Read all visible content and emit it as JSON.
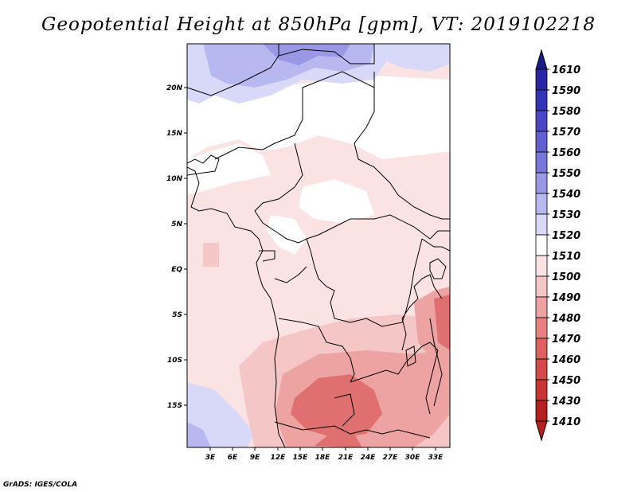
{
  "title": "Geopotential Height at 850hPa [gpm], VT: 2019102218",
  "credit": "GrADS: IGES/COLA",
  "map": {
    "lat_labels": [
      "20N",
      "15N",
      "10N",
      "5N",
      "EQ",
      "5S",
      "10S",
      "15S"
    ],
    "lon_labels": [
      "3E",
      "6E",
      "9E",
      "12E",
      "15E",
      "18E",
      "21E",
      "24E",
      "27E",
      "30E",
      "33E"
    ]
  },
  "colorbar": {
    "levels": [
      "1610",
      "1590",
      "1580",
      "1570",
      "1560",
      "1550",
      "1540",
      "1530",
      "1520",
      "1510",
      "1500",
      "1490",
      "1480",
      "1470",
      "1460",
      "1450",
      "1430",
      "1410"
    ],
    "colors": [
      "#1a1a8c",
      "#2727a8",
      "#3434bb",
      "#4848c8",
      "#6060d2",
      "#7878dc",
      "#9898e6",
      "#b8b8f0",
      "#d8d8f8",
      "#ffffff",
      "#fbe3e3",
      "#f5c6c6",
      "#eea3a3",
      "#e88080",
      "#e06060",
      "#d84848",
      "#cc3333",
      "#b81f1f"
    ]
  },
  "colors": {
    "border": "#000000",
    "neutral": "#ffffff",
    "pale_pink": "#fbe3e3",
    "pink": "#f5c6c6",
    "mid_red": "#eea3a3",
    "red": "#e07070",
    "pale_blue": "#d8d8f8",
    "blue": "#b8b8f0",
    "deep_blue": "#9898e6"
  }
}
